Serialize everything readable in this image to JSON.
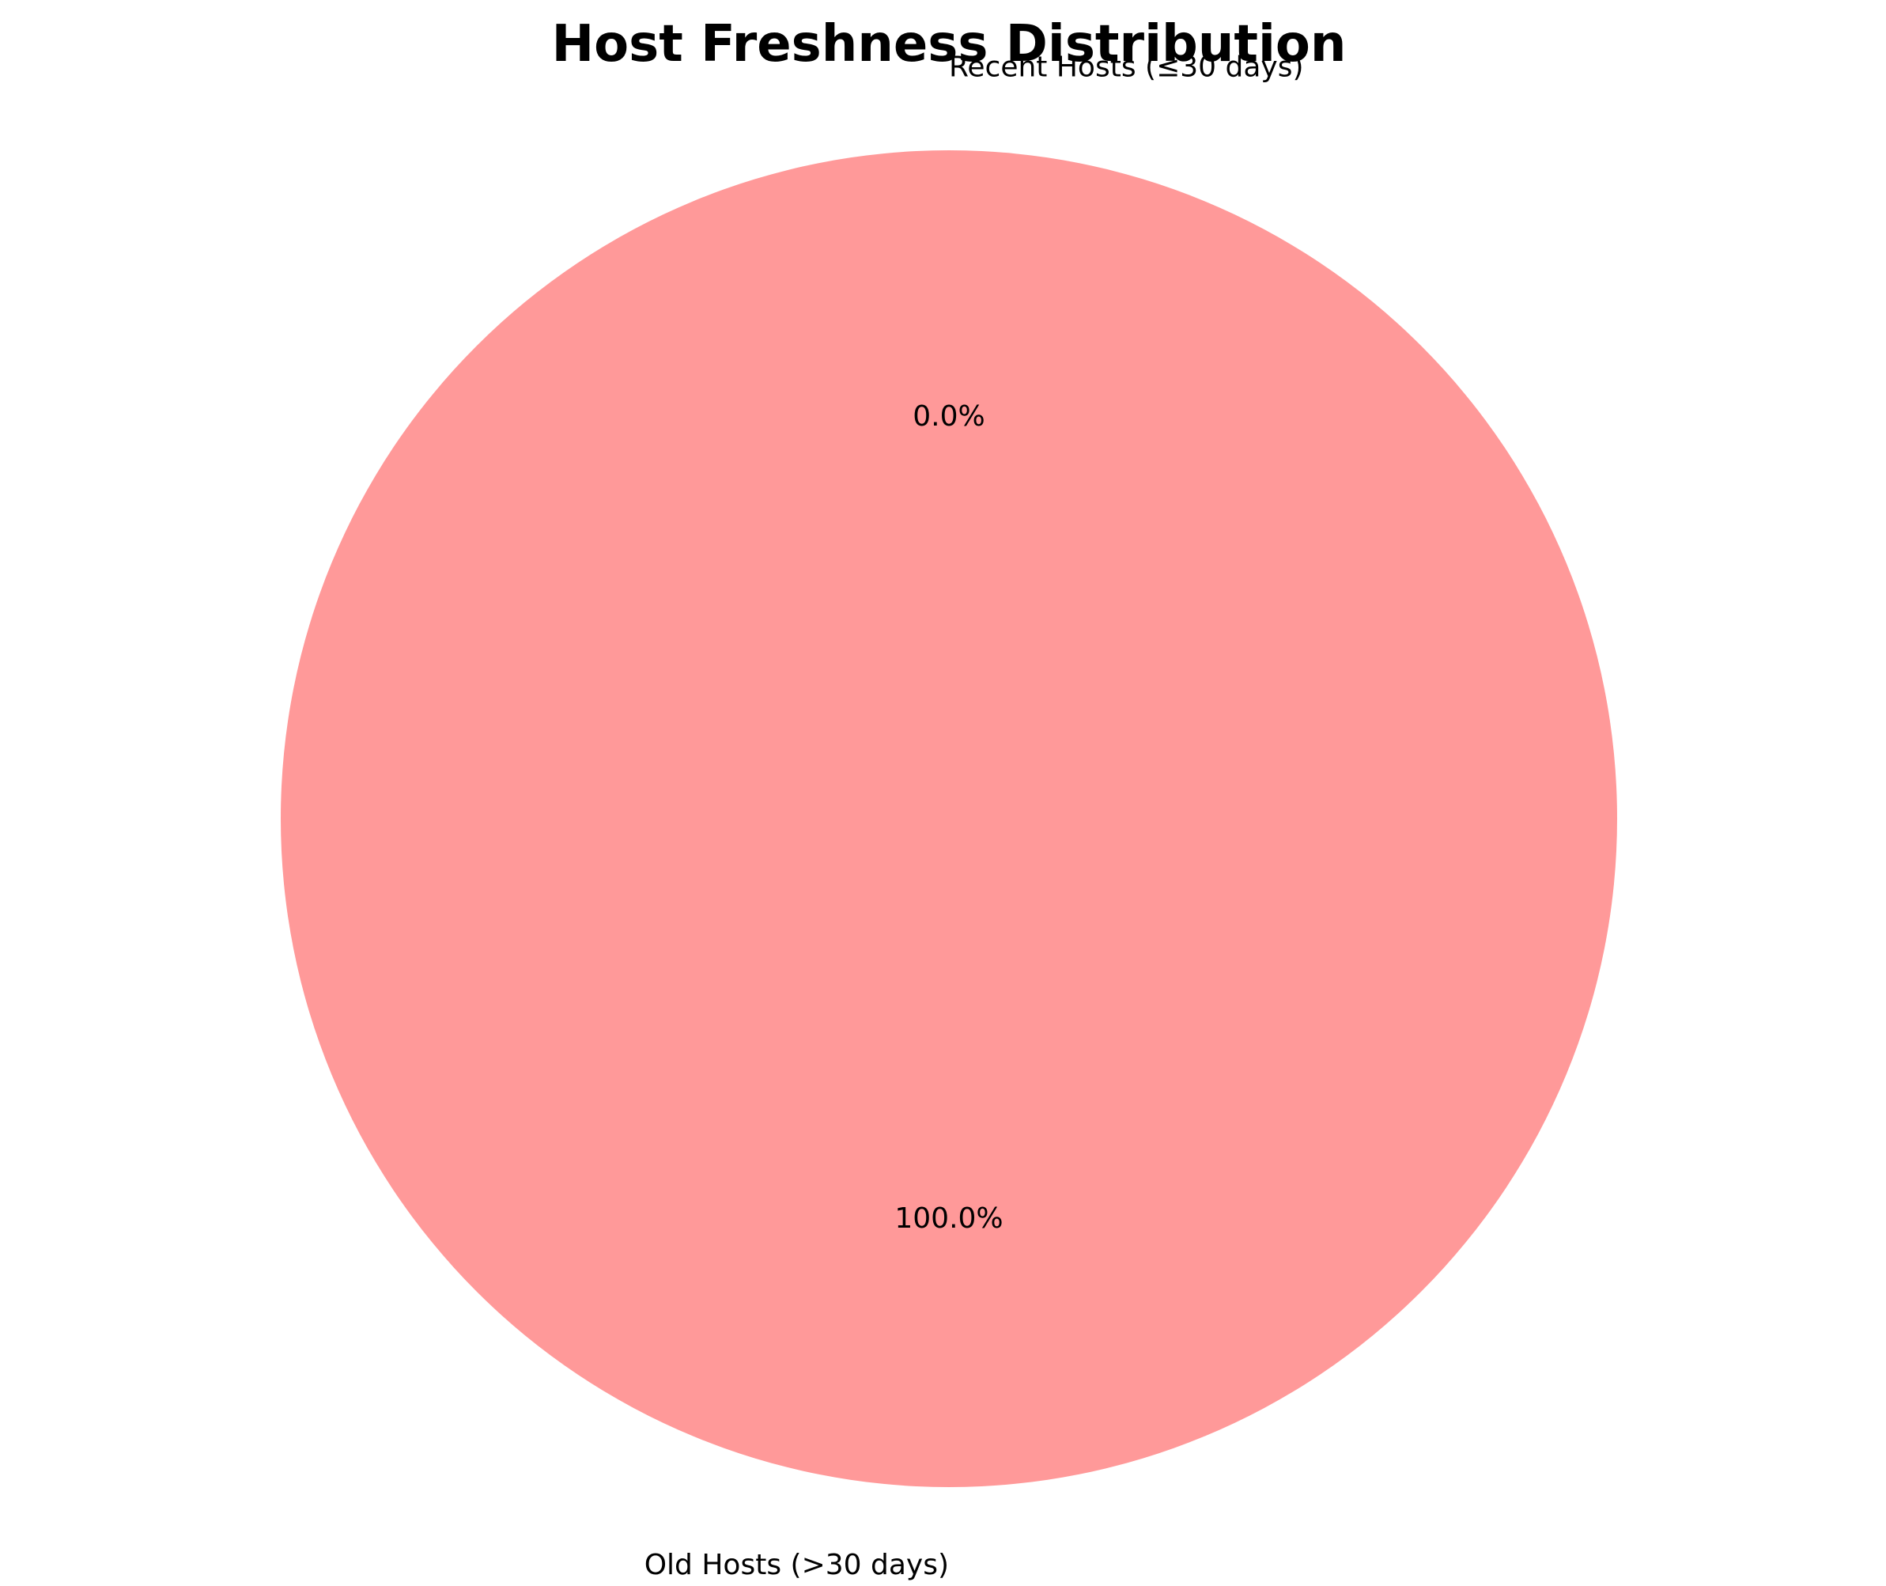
{
  "chart_data": {
    "type": "pie",
    "title": "Host Freshness Distribution",
    "categories": [
      "Recent Hosts (≤30 days)",
      "Old Hosts (>30 days)"
    ],
    "values": [
      0.0,
      100.0
    ],
    "percent_labels": [
      "0.0%",
      "100.0%"
    ],
    "colors": [
      "#66b3ff",
      "#ff9999"
    ],
    "start_angle_deg": 90,
    "direction": "counterclockwise",
    "legend": "none"
  }
}
